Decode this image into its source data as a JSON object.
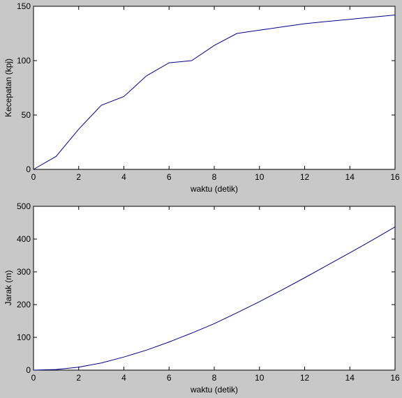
{
  "chart_data": [
    {
      "type": "line",
      "title": "",
      "xlabel": "waktu (detik)",
      "ylabel": "Kecepatan (kpj)",
      "xlim": [
        0,
        16
      ],
      "ylim": [
        0,
        150
      ],
      "xticks": [
        "0",
        "2",
        "4",
        "6",
        "8",
        "10",
        "12",
        "14",
        "16"
      ],
      "yticks": [
        "0",
        "50",
        "100",
        "150"
      ],
      "grid": false,
      "colors": {
        "background": "#c8c8c8",
        "axes": "#ffffff",
        "line": "#00008b"
      },
      "series": [
        {
          "x": [
            0,
            1,
            2,
            3,
            4,
            5,
            6,
            7,
            8,
            9,
            10,
            11,
            12,
            13,
            14,
            15,
            16
          ],
          "y": [
            0,
            12,
            37,
            59,
            67,
            86,
            98,
            100,
            114,
            125,
            128,
            131,
            134,
            136,
            138,
            140,
            142
          ]
        }
      ]
    },
    {
      "type": "line",
      "title": "",
      "xlabel": "waktu (detik)",
      "ylabel": "Jarak (m)",
      "xlim": [
        0,
        16
      ],
      "ylim": [
        0,
        500
      ],
      "xticks": [
        "0",
        "2",
        "4",
        "6",
        "8",
        "10",
        "12",
        "14",
        "16"
      ],
      "yticks": [
        "0",
        "100",
        "200",
        "300",
        "400",
        "500"
      ],
      "grid": false,
      "colors": {
        "background": "#c8c8c8",
        "axes": "#ffffff",
        "line": "#00008b"
      },
      "series": [
        {
          "x": [
            0,
            1,
            2,
            3,
            4,
            5,
            6,
            7,
            8,
            9,
            10,
            11,
            12,
            13,
            14,
            15,
            16
          ],
          "y": [
            0,
            2,
            9,
            22,
            40,
            61,
            86,
            113,
            142,
            175,
            209,
            245,
            282,
            320,
            358,
            397,
            437
          ]
        }
      ]
    }
  ]
}
